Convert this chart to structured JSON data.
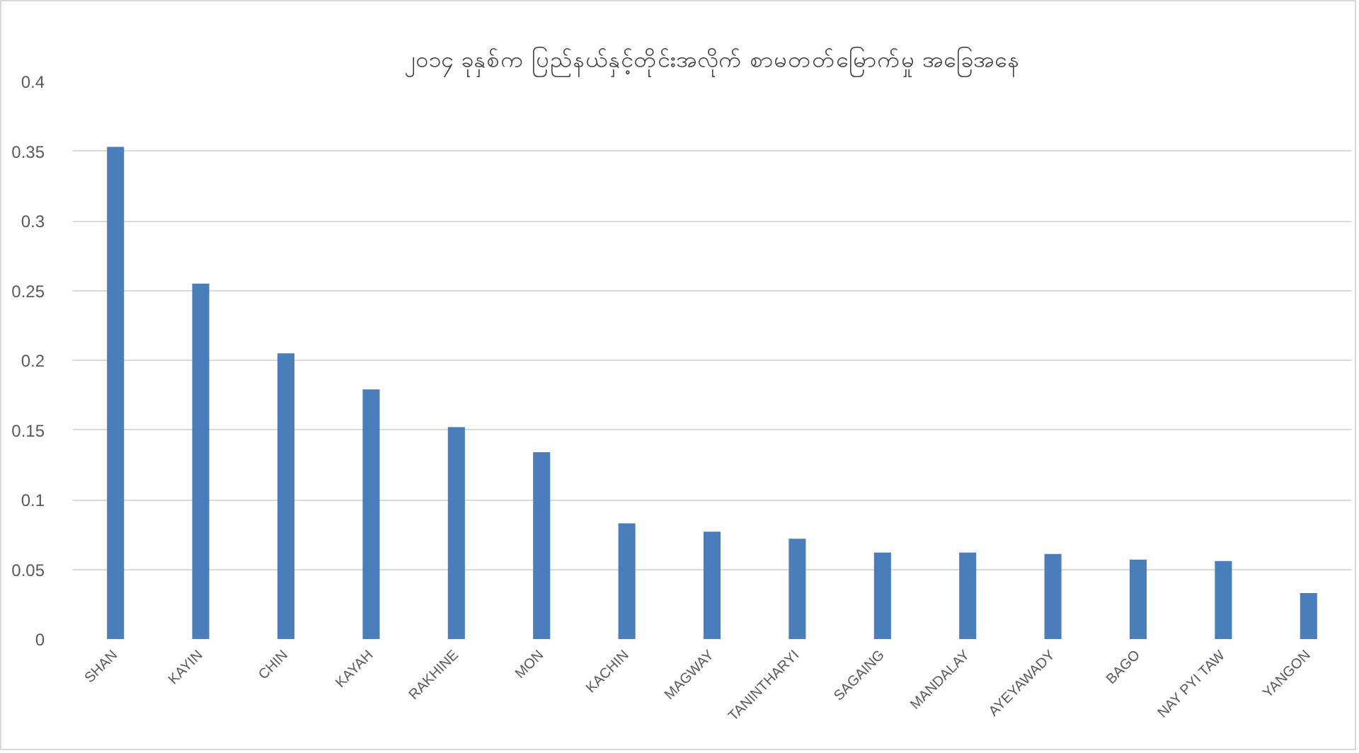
{
  "chart_data": {
    "type": "bar",
    "title": "၂၀၁၄ ခုနှစ်က ပြည်နယ်နှင့်တိုင်းအလိုက် စာမတတ်မြောက်မှု အခြေအနေ",
    "categories": [
      "SHAN",
      "KAYIN",
      "CHIN",
      "KAYAH",
      "RAKHINE",
      "MON",
      "KACHIN",
      "MAGWAY",
      "TANINTHARYI",
      "SAGAING",
      "MANDALAY",
      "AYEYAWADY",
      "BAGO",
      "NAY PYI TAW",
      "YANGON"
    ],
    "values": [
      0.353,
      0.255,
      0.205,
      0.179,
      0.152,
      0.134,
      0.083,
      0.077,
      0.072,
      0.062,
      0.062,
      0.061,
      0.057,
      0.056,
      0.033
    ],
    "color": "#4a7ebb",
    "ylim": [
      0,
      0.4
    ],
    "yticks": [
      0,
      0.05,
      0.1,
      0.15,
      0.2,
      0.25,
      0.3,
      0.35,
      0.4
    ],
    "grid": "y"
  }
}
